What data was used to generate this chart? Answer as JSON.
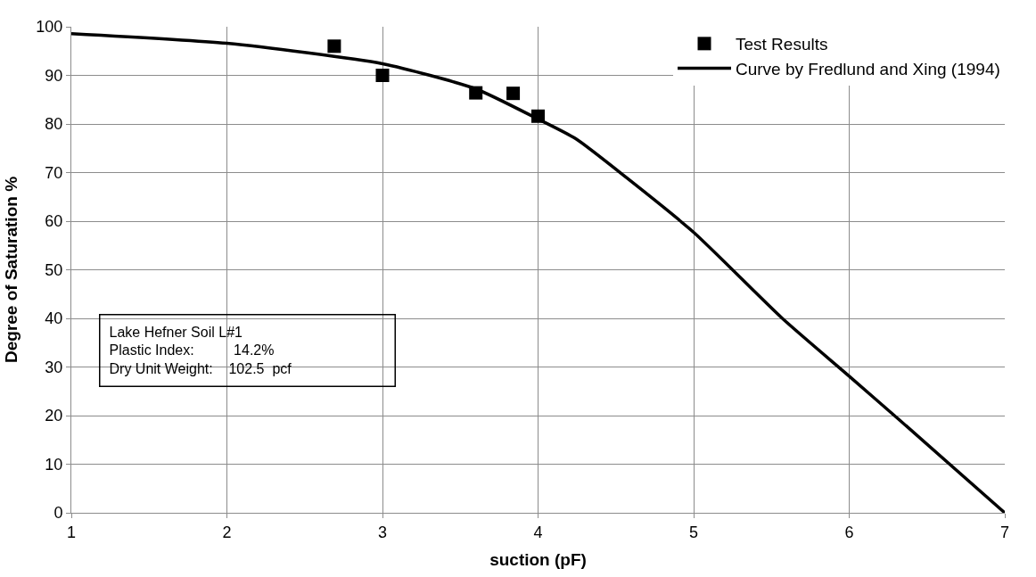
{
  "chart_data": {
    "type": "scatter",
    "xlabel": "suction (pF)",
    "ylabel": "Degree of Saturation %",
    "xlim": [
      1,
      7
    ],
    "xticks": [
      1,
      2,
      3,
      4,
      5,
      6,
      7
    ],
    "ylim": [
      0,
      100
    ],
    "yticks": [
      0,
      10,
      20,
      30,
      40,
      50,
      60,
      70,
      80,
      90,
      100
    ],
    "grid": true,
    "legend": "top right",
    "series": [
      {
        "name": "Test Results",
        "marker": "square",
        "color": "#000000",
        "x": [
          2.69,
          3.0,
          3.6,
          3.84,
          4.0
        ],
        "values": [
          96.0,
          90.0,
          86.4,
          86.3,
          81.6
        ]
      },
      {
        "name": "Curve by Fredlund and Xing (1994)",
        "type": "line",
        "marker": "none",
        "line_style": "solid",
        "color": "#000000",
        "x": [
          1,
          2,
          3,
          3.6,
          4,
          4.24,
          4.57,
          5,
          5.57,
          6,
          6.33,
          7
        ],
        "values": [
          98.6,
          96.6,
          92.4,
          87.2,
          81.0,
          77.0,
          68.9,
          57.7,
          40.0,
          28.1,
          18.9,
          0
        ]
      }
    ],
    "annotations": [
      "Lake Hefner Soil L#1",
      "Plastic Index:          14.2%",
      "Dry Unit Weight:    102.5  pcf"
    ]
  }
}
